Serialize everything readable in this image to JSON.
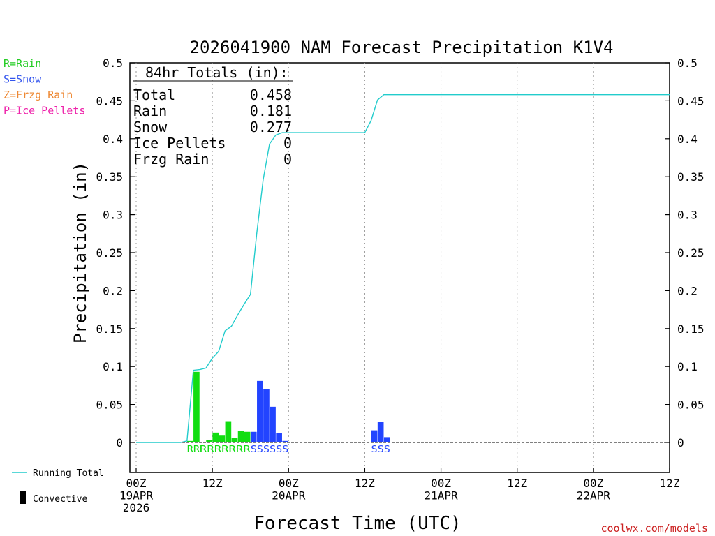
{
  "title": "2026041900 NAM Forecast Precipitation K1V4",
  "legend_top": [
    {
      "label": "R=Rain",
      "color": "#22cc22"
    },
    {
      "label": "S=Snow",
      "color": "#3355ee"
    },
    {
      "label": "Z=Frzg Rain",
      "color": "#ee8833"
    },
    {
      "label": "P=Ice Pellets",
      "color": "#ee22aa"
    }
  ],
  "legend_bottom": {
    "running_total": "Running Total",
    "convective": "Convective"
  },
  "totals": {
    "header": "84hr Totals (in):",
    "rows": [
      {
        "label": "Total",
        "value": "0.458"
      },
      {
        "label": "Rain",
        "value": "0.181"
      },
      {
        "label": "Snow",
        "value": "0.277"
      },
      {
        "label": "Ice Pellets",
        "value": "0"
      },
      {
        "label": "Frzg Rain",
        "value": "0"
      }
    ]
  },
  "credit": "coolwx.com/models",
  "colors": {
    "rain": "#11dd11",
    "snow": "#2244ff",
    "line": "#22cccc",
    "axis": "#000000",
    "grid": "#999999"
  },
  "chart_data": {
    "type": "bar",
    "title": "2026041900 NAM Forecast Precipitation K1V4",
    "xlabel": "Forecast Time (UTC)",
    "ylabel": "Precipitation (in)",
    "ylim": [
      -0.04,
      0.5
    ],
    "xlim_hours": [
      0,
      84
    ],
    "yticks": [
      "0",
      "0.05",
      "0.1",
      "0.15",
      "0.2",
      "0.25",
      "0.3",
      "0.35",
      "0.4",
      "0.45",
      "0.5"
    ],
    "xticks": [
      {
        "hour": 0,
        "lines": [
          "00Z",
          "19APR",
          "2026"
        ]
      },
      {
        "hour": 12,
        "lines": [
          "12Z"
        ]
      },
      {
        "hour": 24,
        "lines": [
          "00Z",
          "20APR"
        ]
      },
      {
        "hour": 36,
        "lines": [
          "12Z"
        ]
      },
      {
        "hour": 48,
        "lines": [
          "00Z",
          "21APR"
        ]
      },
      {
        "hour": 60,
        "lines": [
          "12Z"
        ]
      },
      {
        "hour": 72,
        "lines": [
          "00Z",
          "22APR"
        ]
      },
      {
        "hour": 84,
        "lines": [
          "12Z"
        ]
      }
    ],
    "bars": [
      {
        "hour": 8,
        "value": 0.002,
        "type": "R"
      },
      {
        "hour": 9,
        "value": 0.093,
        "type": "R"
      },
      {
        "hour": 11,
        "value": 0.003,
        "type": "R"
      },
      {
        "hour": 12,
        "value": 0.013,
        "type": "R"
      },
      {
        "hour": 13,
        "value": 0.009,
        "type": "R"
      },
      {
        "hour": 14,
        "value": 0.028,
        "type": "R"
      },
      {
        "hour": 15,
        "value": 0.006,
        "type": "R"
      },
      {
        "hour": 16,
        "value": 0.015,
        "type": "R"
      },
      {
        "hour": 17,
        "value": 0.014,
        "type": "R"
      },
      {
        "hour": 18,
        "value": 0.014,
        "type": "S"
      },
      {
        "hour": 19,
        "value": 0.081,
        "type": "S"
      },
      {
        "hour": 20,
        "value": 0.07,
        "type": "S"
      },
      {
        "hour": 21,
        "value": 0.047,
        "type": "S"
      },
      {
        "hour": 22,
        "value": 0.012,
        "type": "S"
      },
      {
        "hour": 23,
        "value": 0.002,
        "type": "S"
      },
      {
        "hour": 37,
        "value": 0.016,
        "type": "S"
      },
      {
        "hour": 38,
        "value": 0.027,
        "type": "S"
      },
      {
        "hour": 39,
        "value": 0.007,
        "type": "S"
      }
    ],
    "running_total": [
      {
        "hour": 0,
        "value": 0
      },
      {
        "hour": 7,
        "value": 0
      },
      {
        "hour": 8,
        "value": 0.002
      },
      {
        "hour": 9,
        "value": 0.095
      },
      {
        "hour": 10,
        "value": 0.096
      },
      {
        "hour": 11,
        "value": 0.098
      },
      {
        "hour": 12,
        "value": 0.111
      },
      {
        "hour": 13,
        "value": 0.12
      },
      {
        "hour": 14,
        "value": 0.147
      },
      {
        "hour": 15,
        "value": 0.153
      },
      {
        "hour": 16,
        "value": 0.168
      },
      {
        "hour": 17,
        "value": 0.182
      },
      {
        "hour": 18,
        "value": 0.195
      },
      {
        "hour": 19,
        "value": 0.276
      },
      {
        "hour": 20,
        "value": 0.346
      },
      {
        "hour": 21,
        "value": 0.393
      },
      {
        "hour": 22,
        "value": 0.405
      },
      {
        "hour": 23,
        "value": 0.408
      },
      {
        "hour": 36,
        "value": 0.408
      },
      {
        "hour": 37,
        "value": 0.424
      },
      {
        "hour": 38,
        "value": 0.451
      },
      {
        "hour": 39,
        "value": 0.458
      },
      {
        "hour": 84,
        "value": 0.458
      }
    ],
    "type_labels": [
      {
        "hour_start": 8,
        "hour_end": 10,
        "text": "RR",
        "type": "R"
      },
      {
        "hour_start": 10,
        "hour_end": 18,
        "text": "RRRRRRR",
        "type": "R"
      },
      {
        "hour_start": 18,
        "hour_end": 24,
        "text": "SSSSSS",
        "type": "S"
      },
      {
        "hour_start": 37,
        "hour_end": 40,
        "text": "SSS",
        "type": "S"
      }
    ]
  }
}
